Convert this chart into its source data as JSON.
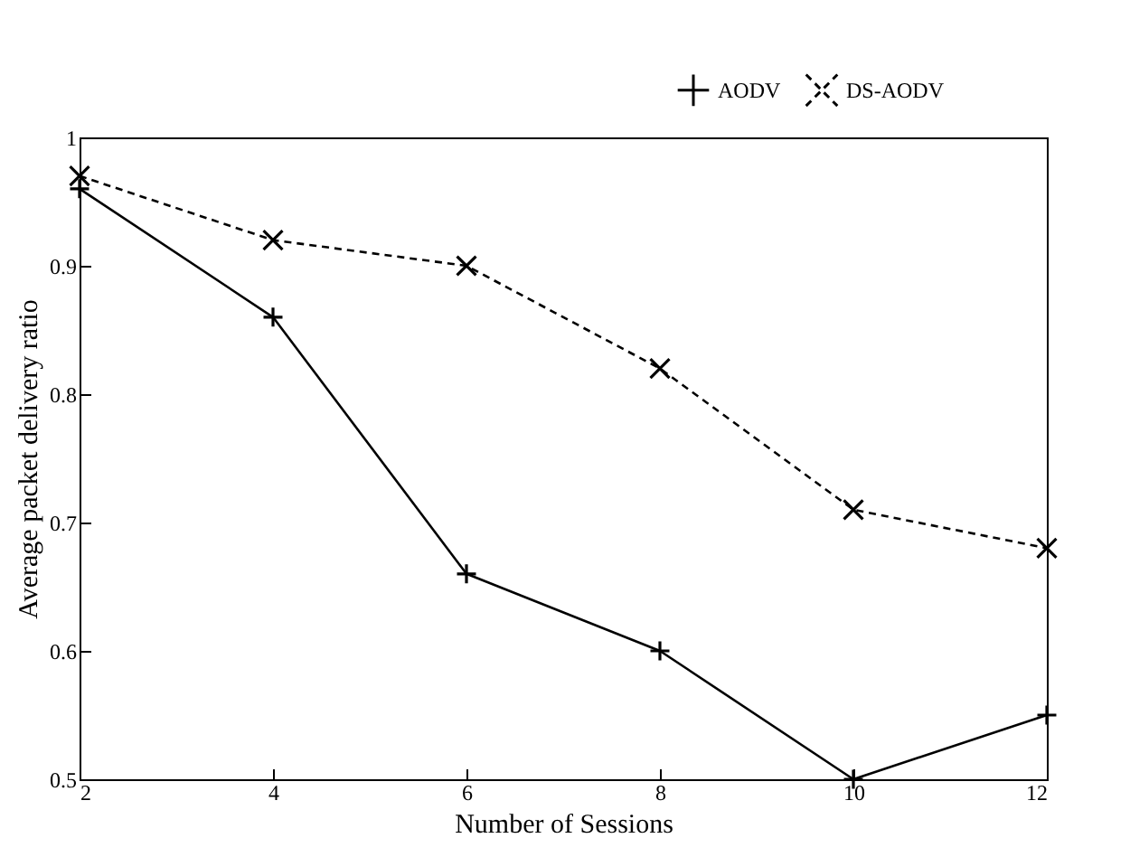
{
  "chart_data": {
    "type": "line",
    "xlabel": "Number of Sessions",
    "ylabel": "Average packet delivery ratio",
    "x": [
      2,
      4,
      6,
      8,
      10,
      12
    ],
    "series": [
      {
        "name": "AODV",
        "color": "#000000",
        "values": [
          0.96,
          0.86,
          0.66,
          0.6,
          0.5,
          0.55
        ],
        "marker": "cross",
        "line_style": "solid"
      },
      {
        "name": "DS-AODV",
        "color": "#000000",
        "values": [
          0.97,
          0.92,
          0.9,
          0.82,
          0.71,
          0.68
        ],
        "marker": "x",
        "line_style": "dashed"
      }
    ],
    "xlim": [
      2,
      12
    ],
    "xticks": [
      2,
      4,
      6,
      8,
      10,
      12
    ],
    "ylim": [
      0.5,
      1
    ],
    "yticks": [
      0.5,
      0.6,
      0.7,
      0.8,
      0.9,
      1
    ],
    "grid": false,
    "legend": "top right"
  }
}
